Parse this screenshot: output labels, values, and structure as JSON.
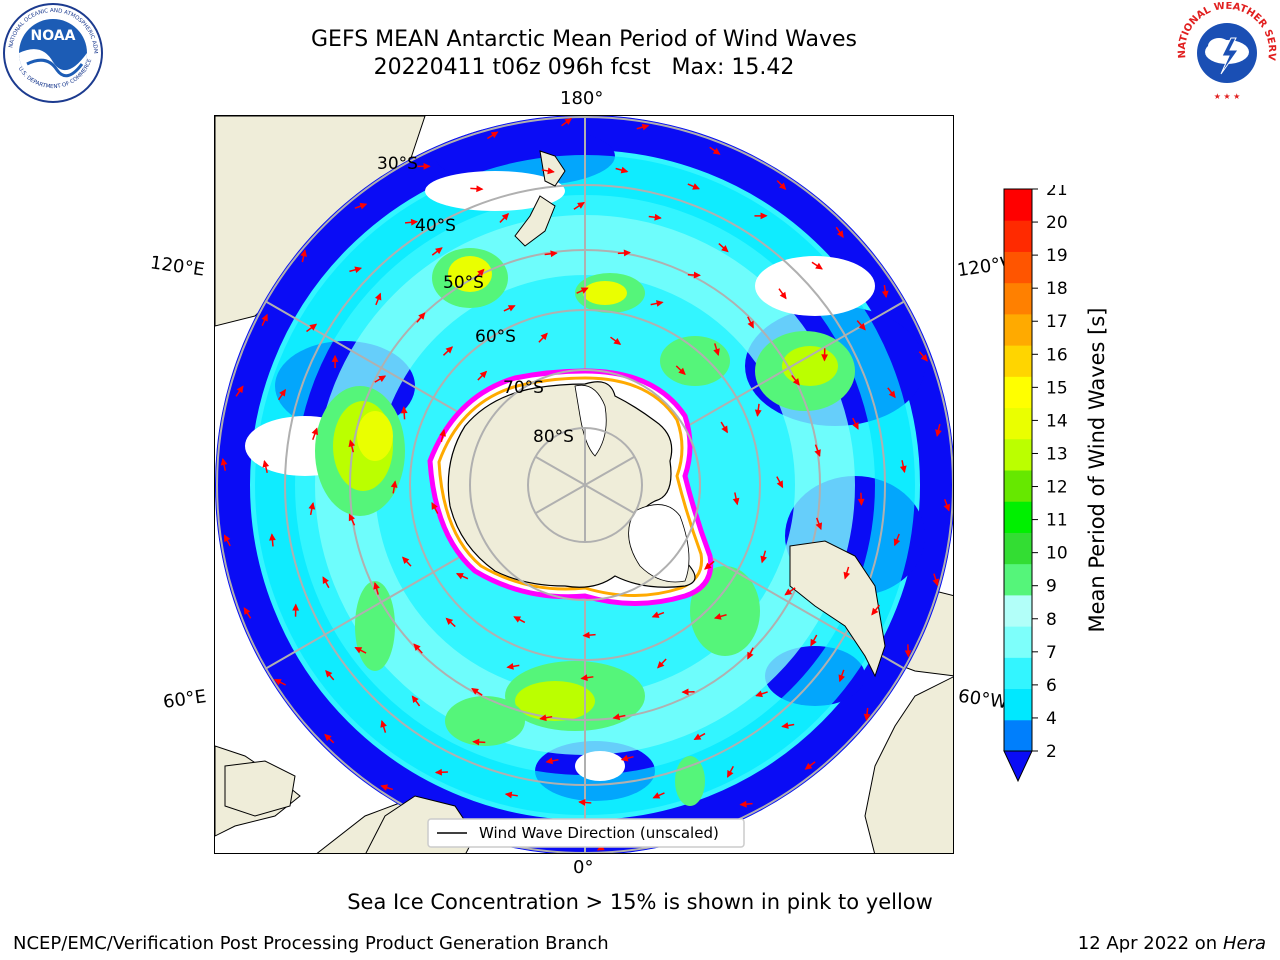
{
  "title": {
    "line1": "GEFS MEAN Antarctic Mean Period of Wind Waves",
    "line2": "20220411 t06z 096h fcst   Max: 15.42"
  },
  "logos": {
    "left": {
      "name": "noaa-logo",
      "text": "NOAA"
    },
    "right": {
      "name": "nws-logo",
      "text": "NATIONAL WEATHER SERVICE"
    }
  },
  "map": {
    "projection": "south-polar-stereographic",
    "longitude_labels": {
      "top": "180°",
      "bottom": "0°",
      "upper_left": "120°E",
      "upper_right": "120°W",
      "lower_left": "60°E",
      "lower_right": "60°W"
    },
    "latitude_labels": [
      "30°S",
      "40°S",
      "50°S",
      "60°S",
      "70°S",
      "80°S"
    ],
    "legend_label": "Wind Wave Direction (unscaled)",
    "arrow_color": "#ff0000",
    "land_color": "#efedd9",
    "ice_edge_colors": [
      "#ff00ff",
      "#ffaa00",
      "#ffff66"
    ]
  },
  "colorbar": {
    "label": "Mean Period of Wind Waves [s]",
    "ticks": [
      "2",
      "4",
      "6",
      "7",
      "8",
      "9",
      "10",
      "11",
      "12",
      "13",
      "14",
      "15",
      "16",
      "17",
      "18",
      "19",
      "20",
      "21"
    ],
    "colors": [
      "#0a0cf5",
      "#007ffc",
      "#00e8ff",
      "#33f5ff",
      "#7dfffb",
      "#b2fff9",
      "#55f57a",
      "#33dd33",
      "#00f000",
      "#66e800",
      "#bbff00",
      "#eaff00",
      "#ffff00",
      "#ffd500",
      "#ffaa00",
      "#ff8000",
      "#ff5500",
      "#ff2a00",
      "#ff0000"
    ]
  },
  "subtitle": "Sea Ice Concentration > 15% is shown in pink to yellow",
  "footer": {
    "left": "NCEP/EMC/Verification Post Processing Product Generation Branch",
    "right_prefix": "12 Apr 2022 on ",
    "right_host": "Hera"
  }
}
